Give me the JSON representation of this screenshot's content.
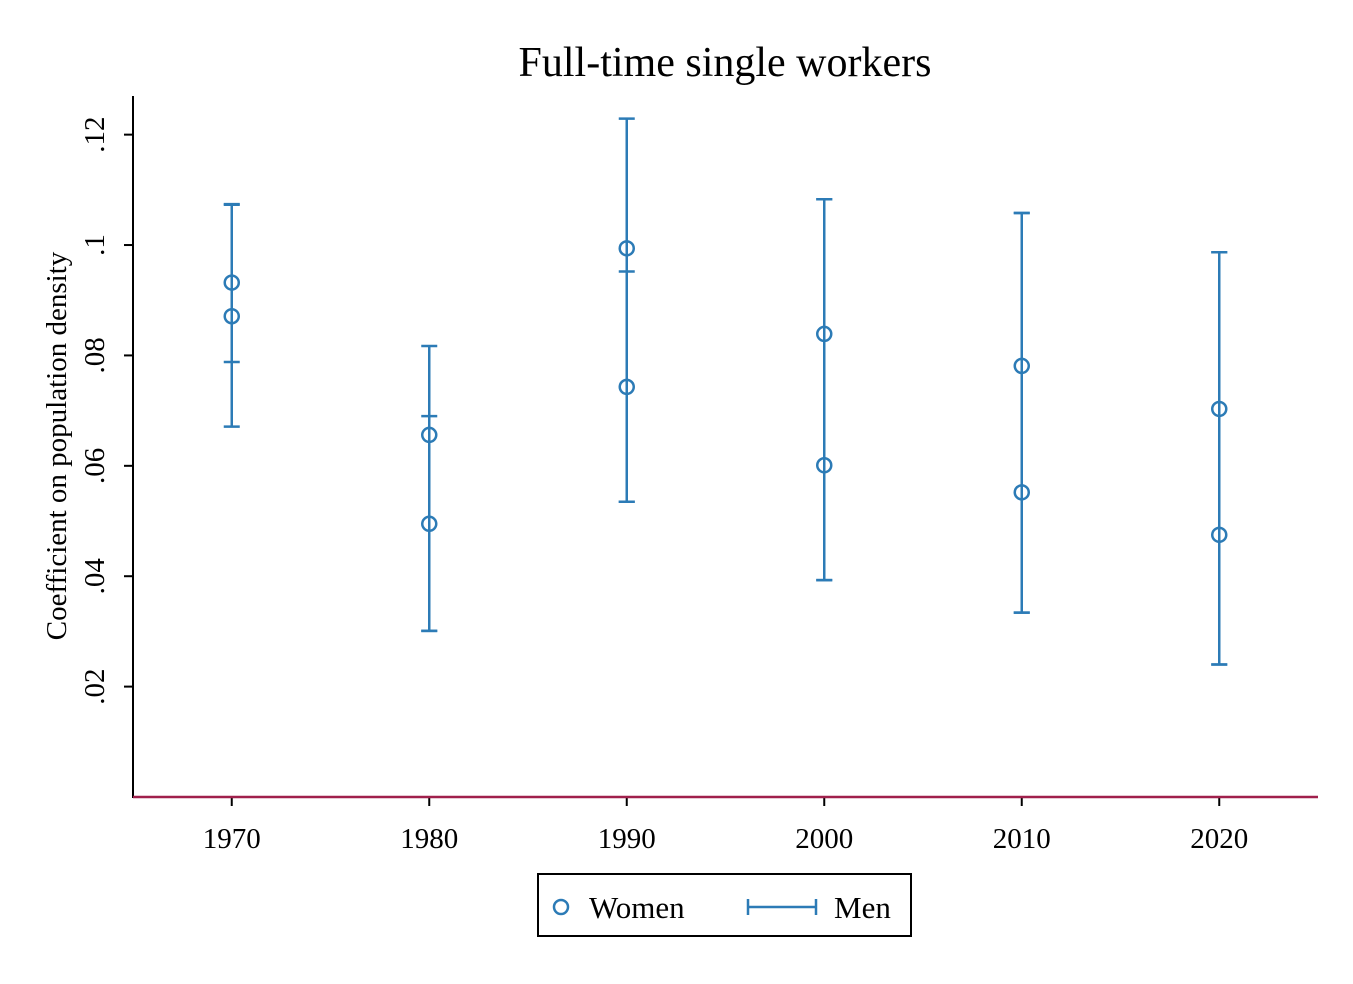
{
  "chart_data": {
    "type": "scatter",
    "title": "Full-time single workers",
    "xlabel": "",
    "ylabel": "Coefficient on population density",
    "x": [
      1970,
      1980,
      1990,
      2000,
      2010,
      2020
    ],
    "x_tick_labels": [
      "1970",
      "1980",
      "1990",
      "2000",
      "2010",
      "2020"
    ],
    "xlim": [
      1965,
      2025
    ],
    "y_ticks": [
      0.02,
      0.04,
      0.06,
      0.08,
      0.1,
      0.12
    ],
    "y_tick_labels": [
      ".02",
      ".04",
      ".06",
      ".08",
      ".1",
      ".12"
    ],
    "ylim": [
      0,
      0.127
    ],
    "grid": false,
    "legend_position": "bottom-center",
    "reference_line": {
      "y": 0.0,
      "color": "#A0204C"
    },
    "series": [
      {
        "name": "Women",
        "marker": "hollow-circle",
        "color": "#2C7BB6",
        "values": [
          0.0871,
          0.0495,
          0.0743,
          0.0839,
          0.0781,
          0.0703
        ],
        "ci_low": [
          0.0671,
          0.0301,
          0.0535,
          0.0393,
          0.0334,
          0.024
        ],
        "ci_high": [
          0.1073,
          0.069,
          0.0952,
          0.1083,
          0.1058,
          0.0987
        ]
      },
      {
        "name": "Men",
        "marker": "capped-range",
        "color": "#2C7BB6",
        "values": [
          0.0932,
          0.0656,
          0.0994,
          0.0601,
          0.0552,
          0.0475
        ],
        "ci_low": [
          0.0788,
          0.0301,
          0.0535,
          0.0393,
          0.0334,
          0.024
        ],
        "ci_high": [
          0.1074,
          0.0817,
          0.1229,
          0.1083,
          0.1058,
          0.0987
        ]
      }
    ]
  }
}
